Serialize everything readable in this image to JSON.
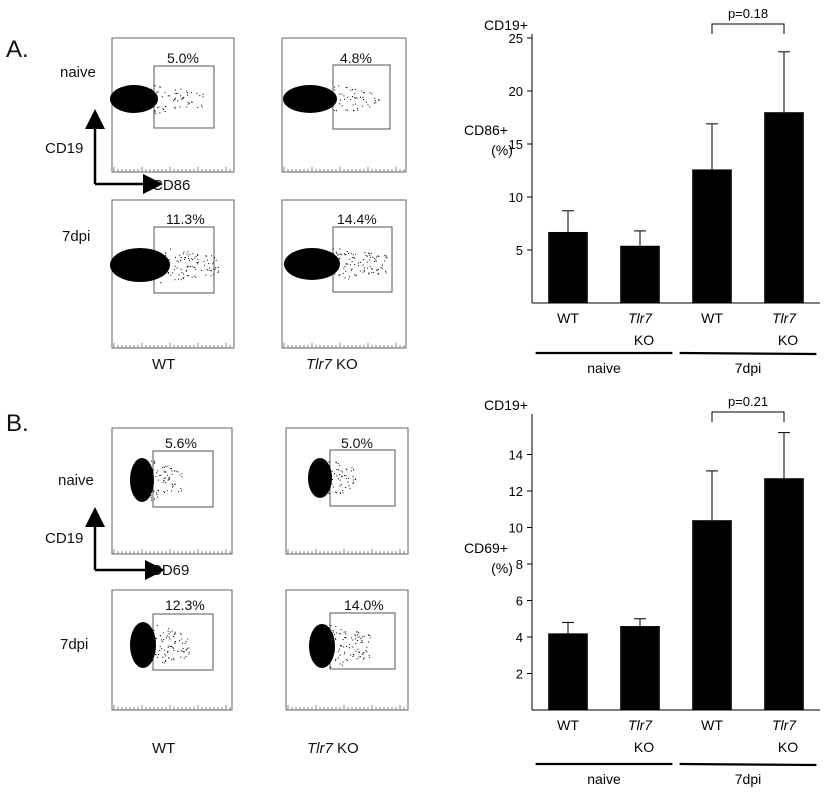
{
  "panel_a": {
    "letter": "A.",
    "row_labels": [
      "naive",
      "7dpi"
    ],
    "y_axis_label": "CD19",
    "x_axis_label": "CD86",
    "col_labels": {
      "wt": "WT",
      "ko_italic": "Tlr7",
      "ko_suffix": " KO"
    },
    "gates": {
      "naive_wt": "5.0%",
      "naive_ko": "4.8%",
      "dpi_wt": "11.3%",
      "dpi_ko": "14.4%"
    }
  },
  "panel_b": {
    "letter": "B.",
    "row_labels": [
      "naive",
      "7dpi"
    ],
    "y_axis_label": "CD19",
    "x_axis_label": "CD69",
    "col_labels": {
      "wt": "WT",
      "ko_italic": "Tlr7",
      "ko_suffix": " KO"
    },
    "gates": {
      "naive_wt": "5.6%",
      "naive_ko": "5.0%",
      "dpi_wt": "12.3%",
      "dpi_ko": "14.0%"
    }
  },
  "chart_data": [
    {
      "type": "bar",
      "title": "CD19+",
      "ylabel_lines": [
        "CD86+",
        "(%)"
      ],
      "ylim": [
        0,
        25
      ],
      "yticks": [
        5,
        10,
        15,
        20,
        25
      ],
      "categories": [
        "WT",
        "Tlr7 KO",
        "WT",
        "Tlr7 KO"
      ],
      "values": [
        6.7,
        5.4,
        12.6,
        18.0
      ],
      "errors": [
        2.0,
        1.4,
        4.3,
        5.7
      ],
      "groups": [
        "naive",
        "7dpi"
      ],
      "annotation": "p=0.18",
      "bar_color": "#000000"
    },
    {
      "type": "bar",
      "title": "CD19+",
      "ylabel_lines": [
        "CD69+",
        "(%)"
      ],
      "ylim": [
        0,
        16
      ],
      "yticks": [
        2,
        4,
        6,
        8,
        10,
        12,
        14
      ],
      "categories": [
        "WT",
        "Tlr7 KO",
        "WT",
        "Tlr7 KO"
      ],
      "values": [
        4.2,
        4.6,
        10.4,
        12.7
      ],
      "errors": [
        0.6,
        0.4,
        2.7,
        2.5
      ],
      "groups": [
        "naive",
        "7dpi"
      ],
      "annotation": "p=0.21",
      "bar_color": "#000000"
    }
  ]
}
